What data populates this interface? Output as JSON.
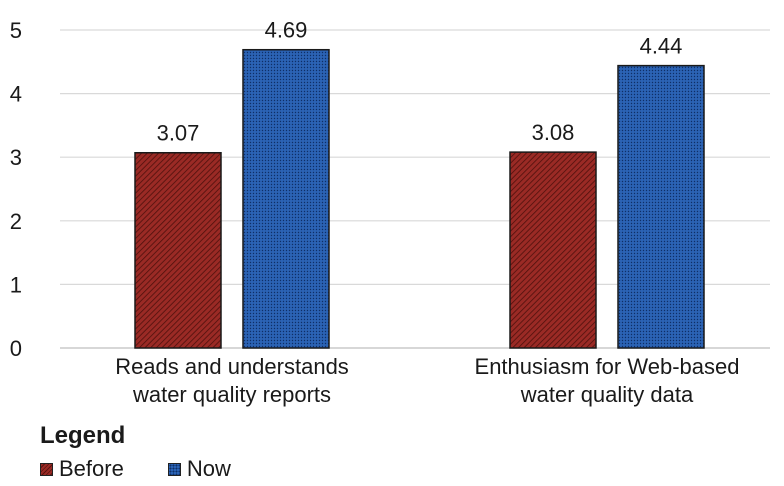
{
  "chart_data": {
    "type": "bar",
    "categories": [
      [
        "Reads and understands",
        "water quality reports"
      ],
      [
        "Enthusiasm for Web-based",
        "water quality data"
      ]
    ],
    "series": [
      {
        "name": "Before",
        "values": [
          3.07,
          3.08
        ],
        "color": "#9a2a25"
      },
      {
        "name": "Now",
        "values": [
          4.69,
          4.44
        ],
        "color": "#2b63b5"
      }
    ],
    "data_labels": [
      [
        "3.07",
        "3.08"
      ],
      [
        "4.69",
        "4.44"
      ]
    ],
    "ylim": [
      0,
      5
    ],
    "yticks": [
      "0",
      "1",
      "2",
      "3",
      "4",
      "5"
    ],
    "grid": true,
    "legend": {
      "title": "Legend",
      "placement": "bottom-left"
    }
  }
}
